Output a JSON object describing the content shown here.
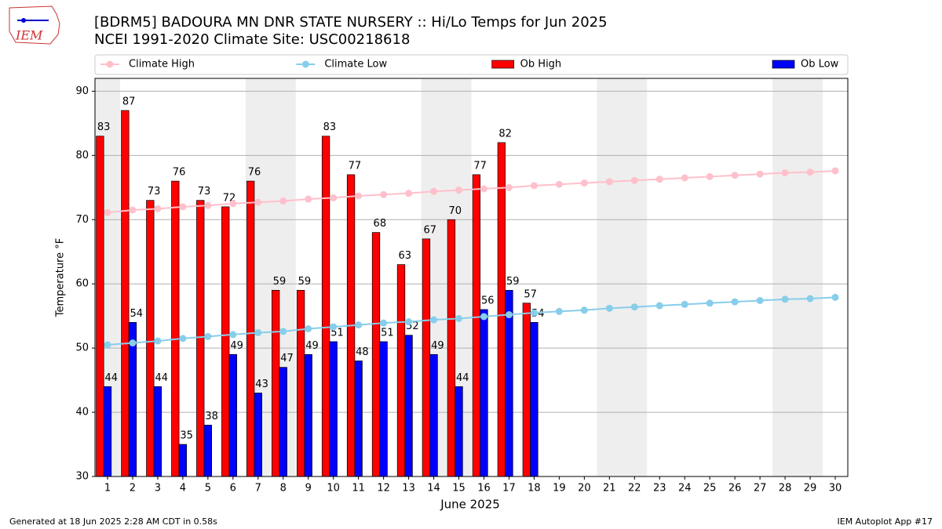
{
  "logo_text": "IEM",
  "footer_left": "Generated at 18 Jun 2025 2:28 AM CDT in 0.58s",
  "footer_right": "IEM Autoplot App #17",
  "chart_data": {
    "type": "bar",
    "title": "[BDRM5] BADOURA MN DNR STATE NURSERY :: Hi/Lo Temps for Jun 2025",
    "subtitle": "NCEI 1991-2020 Climate Site: USC00218618",
    "x_label": "June 2025",
    "y_label": "Temperature °F",
    "x": [
      1,
      2,
      3,
      4,
      5,
      6,
      7,
      8,
      9,
      10,
      11,
      12,
      13,
      14,
      15,
      16,
      17,
      18,
      19,
      20,
      21,
      22,
      23,
      24,
      25,
      26,
      27,
      28,
      29,
      30
    ],
    "xlim": [
      0.5,
      30.5
    ],
    "xticks": [
      1,
      2,
      3,
      4,
      5,
      6,
      7,
      8,
      9,
      10,
      11,
      12,
      13,
      14,
      15,
      16,
      17,
      18,
      19,
      20,
      21,
      22,
      23,
      24,
      25,
      26,
      27,
      28,
      29,
      30
    ],
    "ylim": [
      30,
      92
    ],
    "yticks": [
      30,
      40,
      50,
      60,
      70,
      80,
      90
    ],
    "grid": true,
    "legend": "top",
    "series": [
      {
        "name": "Climate High",
        "type": "line",
        "color": "#ffc0cb",
        "values": [
          71.1,
          71.5,
          71.7,
          72.0,
          72.2,
          72.5,
          72.7,
          72.9,
          73.2,
          73.4,
          73.7,
          73.9,
          74.1,
          74.4,
          74.6,
          74.8,
          75.0,
          75.3,
          75.5,
          75.7,
          75.9,
          76.1,
          76.3,
          76.5,
          76.7,
          76.9,
          77.1,
          77.3,
          77.4,
          77.6
        ]
      },
      {
        "name": "Climate Low",
        "type": "line",
        "color": "#87ceeb",
        "values": [
          50.5,
          50.8,
          51.1,
          51.5,
          51.8,
          52.1,
          52.4,
          52.6,
          53.0,
          53.3,
          53.6,
          53.9,
          54.1,
          54.4,
          54.6,
          54.9,
          55.2,
          55.5,
          55.7,
          55.9,
          56.2,
          56.4,
          56.6,
          56.8,
          57.0,
          57.2,
          57.4,
          57.6,
          57.7,
          57.9
        ]
      },
      {
        "name": "Ob High",
        "type": "bar",
        "color": "#ff0000",
        "values": [
          83,
          87,
          73,
          76,
          73,
          72,
          76,
          59,
          59,
          83,
          77,
          68,
          63,
          67,
          70,
          77,
          82,
          57,
          null,
          null,
          null,
          null,
          null,
          null,
          null,
          null,
          null,
          null,
          null,
          null
        ]
      },
      {
        "name": "Ob Low",
        "type": "bar",
        "color": "#0000ff",
        "values": [
          44,
          54,
          44,
          35,
          38,
          49,
          43,
          47,
          49,
          51,
          48,
          51,
          52,
          49,
          44,
          56,
          59,
          54,
          null,
          null,
          null,
          null,
          null,
          null,
          null,
          null,
          null,
          null,
          null,
          null
        ]
      }
    ]
  }
}
